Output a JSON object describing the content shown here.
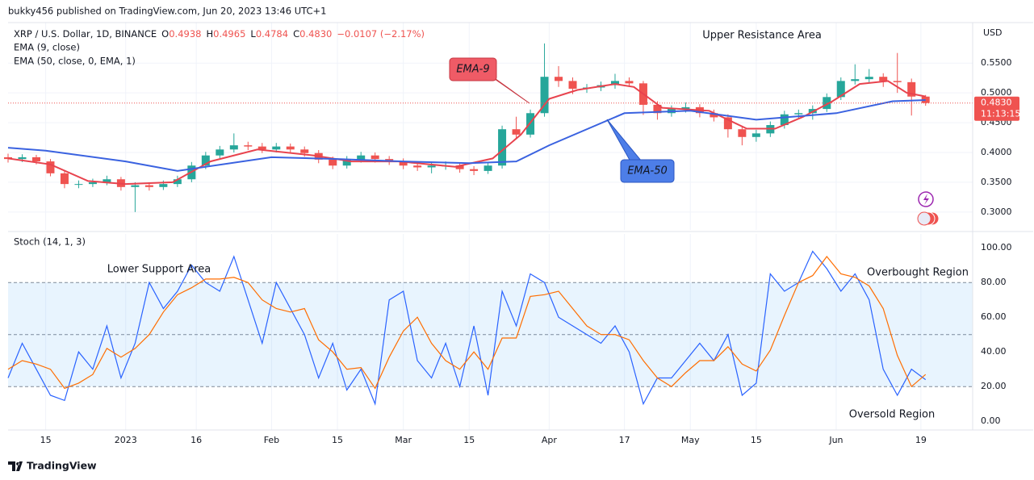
{
  "header": "bukky456 published on TradingView.com, Jun 20, 2023 13:46 UTC+1",
  "footer": "TradingView",
  "chart_data": [
    {
      "type": "candlestick",
      "title": "XRP / U.S. Dollar, 1D, BINANCE",
      "quote": [
        {
          "label": "O",
          "value": "0.4938"
        },
        {
          "label": "H",
          "value": "0.4965"
        },
        {
          "label": "L",
          "value": "0.4784"
        },
        {
          "label": "C",
          "value": "0.4830"
        }
      ],
      "change": "−0.0107 (−2.17%)",
      "axis_unit": "USD",
      "up_color": "#26a69a",
      "down_color": "#ef5350",
      "xlim": [
        -25,
        180
      ],
      "ylim": [
        0.27,
        0.618
      ],
      "yticks": [
        {
          "value": 0.3,
          "label": "0.3000"
        },
        {
          "value": 0.35,
          "label": "0.3500"
        },
        {
          "value": 0.4,
          "label": "0.4000"
        },
        {
          "value": 0.45,
          "label": "0.4500"
        },
        {
          "value": 0.5,
          "label": "0.5000"
        },
        {
          "value": 0.55,
          "label": "0.5500"
        }
      ],
      "grid": true,
      "last_price": {
        "value": 0.483,
        "label": "0.4830"
      },
      "countdown": "11:13:15",
      "x": [
        -25,
        -22,
        -19,
        -16,
        -13,
        -10,
        -7,
        -4,
        -1,
        2,
        5,
        8,
        11,
        14,
        17,
        20,
        23,
        26,
        29,
        32,
        35,
        38,
        41,
        44,
        47,
        50,
        53,
        56,
        59,
        62,
        65,
        68,
        71,
        74,
        77,
        80,
        83,
        86,
        89,
        92,
        95,
        98,
        101,
        104,
        107,
        110,
        113,
        116,
        119,
        122,
        125,
        128,
        131,
        134,
        137,
        140,
        143,
        146,
        149,
        152,
        155,
        158,
        161,
        164,
        167,
        170
      ],
      "open": [
        0.392,
        0.389,
        0.392,
        0.385,
        0.365,
        0.347,
        0.347,
        0.35,
        0.355,
        0.342,
        0.345,
        0.342,
        0.347,
        0.355,
        0.378,
        0.395,
        0.405,
        0.412,
        0.41,
        0.405,
        0.41,
        0.405,
        0.399,
        0.388,
        0.378,
        0.388,
        0.395,
        0.389,
        0.385,
        0.378,
        0.375,
        0.378,
        0.378,
        0.372,
        0.369,
        0.378,
        0.439,
        0.43,
        0.466,
        0.527,
        0.52,
        0.507,
        0.509,
        0.513,
        0.52,
        0.516,
        0.48,
        0.466,
        0.473,
        0.476,
        0.466,
        0.459,
        0.439,
        0.426,
        0.432,
        0.446,
        0.464,
        0.466,
        0.473,
        0.493,
        0.52,
        0.523,
        0.527,
        0.52,
        0.518,
        0.4938
      ],
      "high": [
        0.398,
        0.397,
        0.396,
        0.389,
        0.369,
        0.353,
        0.356,
        0.361,
        0.359,
        0.35,
        0.35,
        0.353,
        0.361,
        0.384,
        0.401,
        0.411,
        0.432,
        0.418,
        0.416,
        0.416,
        0.415,
        0.41,
        0.404,
        0.393,
        0.394,
        0.401,
        0.4,
        0.394,
        0.39,
        0.383,
        0.384,
        0.385,
        0.383,
        0.377,
        0.384,
        0.445,
        0.46,
        0.472,
        0.583,
        0.545,
        0.526,
        0.515,
        0.519,
        0.532,
        0.526,
        0.52,
        0.486,
        0.479,
        0.484,
        0.481,
        0.472,
        0.464,
        0.444,
        0.438,
        0.452,
        0.47,
        0.472,
        0.479,
        0.499,
        0.526,
        0.548,
        0.54,
        0.533,
        0.567,
        0.524,
        0.4965
      ],
      "low": [
        0.383,
        0.384,
        0.38,
        0.36,
        0.34,
        0.34,
        0.342,
        0.345,
        0.336,
        0.3,
        0.336,
        0.337,
        0.342,
        0.35,
        0.372,
        0.39,
        0.4,
        0.404,
        0.399,
        0.4,
        0.399,
        0.393,
        0.382,
        0.372,
        0.373,
        0.383,
        0.383,
        0.379,
        0.372,
        0.369,
        0.365,
        0.371,
        0.366,
        0.362,
        0.364,
        0.373,
        0.424,
        0.425,
        0.46,
        0.51,
        0.498,
        0.5,
        0.503,
        0.507,
        0.51,
        0.463,
        0.455,
        0.46,
        0.467,
        0.459,
        0.452,
        0.425,
        0.412,
        0.418,
        0.426,
        0.44,
        0.458,
        0.455,
        0.468,
        0.488,
        0.514,
        0.517,
        0.51,
        0.5,
        0.462,
        0.4784
      ],
      "close": [
        0.389,
        0.392,
        0.385,
        0.365,
        0.347,
        0.347,
        0.35,
        0.355,
        0.342,
        0.345,
        0.342,
        0.347,
        0.355,
        0.378,
        0.395,
        0.405,
        0.412,
        0.41,
        0.405,
        0.41,
        0.405,
        0.399,
        0.388,
        0.378,
        0.388,
        0.395,
        0.389,
        0.385,
        0.378,
        0.375,
        0.378,
        0.378,
        0.372,
        0.369,
        0.378,
        0.439,
        0.43,
        0.466,
        0.527,
        0.52,
        0.507,
        0.509,
        0.513,
        0.52,
        0.516,
        0.48,
        0.466,
        0.473,
        0.476,
        0.466,
        0.459,
        0.439,
        0.426,
        0.432,
        0.446,
        0.464,
        0.466,
        0.473,
        0.493,
        0.52,
        0.523,
        0.527,
        0.52,
        0.518,
        0.4938,
        0.483
      ],
      "series": [
        {
          "name": "EMA (9, close)",
          "color": "#e8434e",
          "x": [
            -25,
            -16,
            -8,
            0,
            10,
            18,
            28,
            40,
            48,
            58,
            70,
            78,
            84,
            90,
            96,
            104,
            108,
            114,
            124,
            132,
            138,
            144,
            150,
            156,
            162,
            166,
            170
          ],
          "values": [
            0.39,
            0.38,
            0.352,
            0.347,
            0.35,
            0.385,
            0.405,
            0.395,
            0.385,
            0.385,
            0.376,
            0.39,
            0.43,
            0.49,
            0.505,
            0.515,
            0.51,
            0.475,
            0.47,
            0.44,
            0.44,
            0.46,
            0.485,
            0.515,
            0.52,
            0.5,
            0.494
          ]
        },
        {
          "name": "EMA (50, close, 0, EMA, 1)",
          "color": "#3a62e0",
          "x": [
            -25,
            -17,
            0,
            11,
            31,
            45,
            59,
            73,
            83,
            90,
            106,
            120,
            134,
            151,
            163,
            170
          ],
          "values": [
            0.408,
            0.403,
            0.385,
            0.369,
            0.392,
            0.389,
            0.385,
            0.382,
            0.385,
            0.412,
            0.466,
            0.47,
            0.455,
            0.466,
            0.486,
            0.488
          ]
        }
      ],
      "annotations": [
        "Upper Resistance Area",
        "EMA-9",
        "EMA-50"
      ]
    },
    {
      "type": "line",
      "title": "Stoch (14, 1, 3)",
      "xlim": [
        -25,
        180
      ],
      "xticks": [
        {
          "value": -17,
          "label": "15"
        },
        {
          "value": 0,
          "label": "2023"
        },
        {
          "value": 15,
          "label": "16"
        },
        {
          "value": 31,
          "label": "Feb"
        },
        {
          "value": 45,
          "label": "15"
        },
        {
          "value": 59,
          "label": "Mar"
        },
        {
          "value": 73,
          "label": "15"
        },
        {
          "value": 90,
          "label": "Apr"
        },
        {
          "value": 106,
          "label": "17"
        },
        {
          "value": 120,
          "label": "May"
        },
        {
          "value": 134,
          "label": "15"
        },
        {
          "value": 151,
          "label": "Jun"
        },
        {
          "value": 169,
          "label": "19"
        }
      ],
      "ylim": [
        -5,
        108
      ],
      "yticks": [
        {
          "value": 0,
          "label": "0.00"
        },
        {
          "value": 20,
          "label": "20.00"
        },
        {
          "value": 40,
          "label": "40.00"
        },
        {
          "value": 60,
          "label": "60.00"
        },
        {
          "value": 80,
          "label": "80.00"
        },
        {
          "value": 100,
          "label": "100.00"
        }
      ],
      "band": [
        20,
        80
      ],
      "midline": 50,
      "x": [
        -25,
        -22,
        -19,
        -16,
        -13,
        -10,
        -7,
        -4,
        -1,
        2,
        5,
        8,
        11,
        14,
        17,
        20,
        23,
        26,
        29,
        32,
        35,
        38,
        41,
        44,
        47,
        50,
        53,
        56,
        59,
        62,
        65,
        68,
        71,
        74,
        77,
        80,
        83,
        86,
        89,
        92,
        95,
        98,
        101,
        104,
        107,
        110,
        113,
        116,
        119,
        122,
        125,
        128,
        131,
        134,
        137,
        140,
        143,
        146,
        149,
        152,
        155,
        158,
        161,
        164,
        167,
        170
      ],
      "series": [
        {
          "color": "#2962ff",
          "values": [
            25,
            45,
            30,
            15,
            12,
            40,
            30,
            55,
            25,
            45,
            80,
            65,
            75,
            90,
            80,
            75,
            95,
            70,
            45,
            80,
            65,
            50,
            25,
            45,
            18,
            30,
            10,
            70,
            75,
            35,
            25,
            45,
            20,
            55,
            15,
            75,
            55,
            85,
            80,
            60,
            55,
            50,
            45,
            55,
            40,
            10,
            25,
            25,
            35,
            45,
            35,
            50,
            15,
            22,
            85,
            75,
            80,
            98,
            88,
            75,
            85,
            70,
            30,
            15,
            30,
            24
          ]
        },
        {
          "color": "#ff6d00",
          "values": [
            30,
            35,
            33,
            30,
            19,
            22,
            27,
            42,
            37,
            42,
            50,
            63,
            73,
            77,
            82,
            82,
            83,
            80,
            70,
            65,
            63,
            65,
            47,
            40,
            30,
            31,
            19,
            37,
            52,
            60,
            45,
            35,
            30,
            40,
            30,
            48,
            48,
            72,
            73,
            75,
            65,
            55,
            50,
            50,
            47,
            35,
            25,
            20,
            28,
            35,
            35,
            43,
            33,
            29,
            41,
            61,
            80,
            84,
            95,
            85,
            83,
            78,
            65,
            38,
            20,
            27
          ]
        }
      ],
      "annotations": [
        "Lower Support Area",
        "Overbought Region",
        "Oversold Region"
      ]
    }
  ]
}
